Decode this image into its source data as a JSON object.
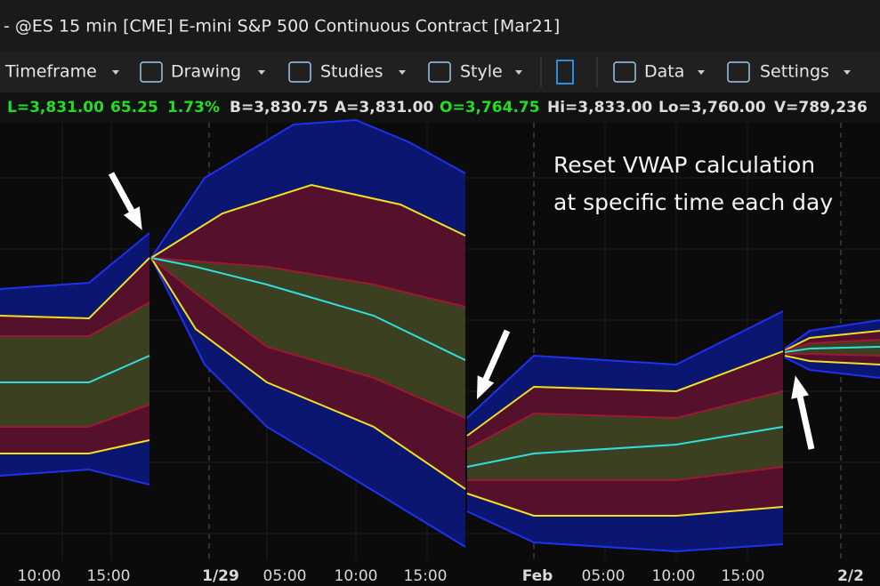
{
  "window_title": "- @ES 15 min [CME] E-mini S&P 500 Continuous Contract [Mar21]",
  "toolbar": [
    "Timeframe",
    "Drawing",
    "Studies",
    "Style",
    "Data",
    "Settings"
  ],
  "quote_bar": [
    {
      "text": "L=3,831.00",
      "color": "#22dd22"
    },
    {
      "text": "65.25",
      "color": "#22dd22"
    },
    {
      "text": "1.73%",
      "color": "#22dd22"
    },
    {
      "text": "B=3,830.75",
      "color": "#dddddd"
    },
    {
      "text": "A=3,831.00",
      "color": "#dddddd"
    },
    {
      "text": "O=3,764.75",
      "color": "#22dd22"
    },
    {
      "text": "Hi=3,833.00",
      "color": "#dddddd"
    },
    {
      "text": "Lo=3,760.00",
      "color": "#dddddd"
    },
    {
      "text": "V=789,236",
      "color": "#dddddd"
    }
  ],
  "annotation": [
    "Reset VWAP calculation",
    "at specific time each day"
  ],
  "time_axis": [
    "10:00",
    "15:00",
    "1/29",
    "05:00",
    "10:00",
    "15:00",
    "Feb",
    "05:00",
    "10:00",
    "15:00",
    "2/2"
  ]
}
